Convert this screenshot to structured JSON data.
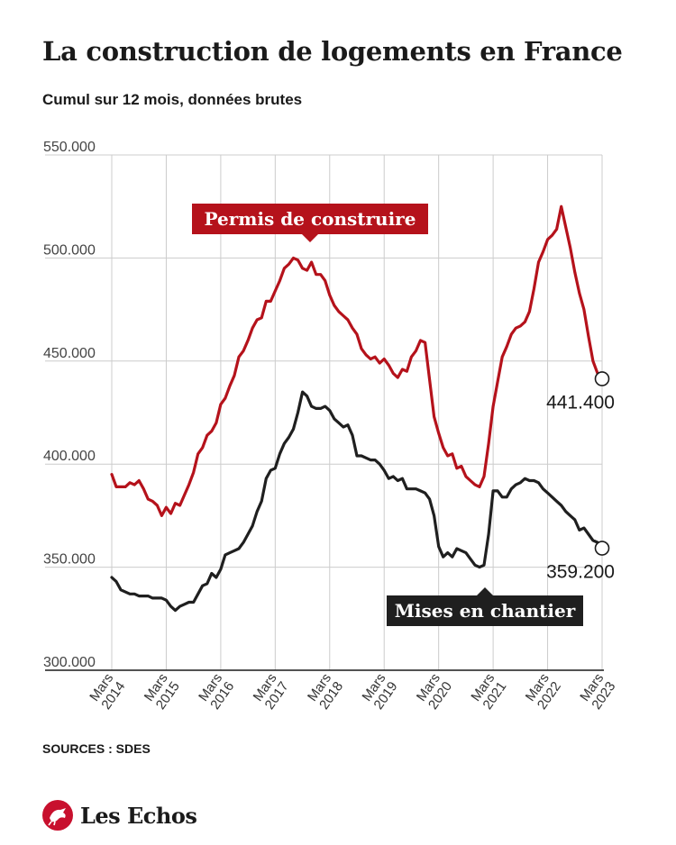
{
  "header": {
    "title": "La construction de logements en France",
    "subtitle": "Cumul sur 12 mois, données brutes"
  },
  "footer": {
    "source": "SOURCES : SDES",
    "logo_text": "Les Echos"
  },
  "colors": {
    "permis": "#b5121b",
    "mises": "#1f1f1f",
    "grid": "#cccccc",
    "logo": "#c8102e"
  },
  "chart_data": {
    "type": "line",
    "title": "La construction de logements en France",
    "subtitle": "Cumul sur 12 mois, données brutes",
    "ylim": [
      300000,
      550000
    ],
    "y_ticks": [
      300000,
      350000,
      400000,
      450000,
      500000,
      550000
    ],
    "y_tick_labels": [
      "300.000",
      "350.000",
      "400.000",
      "450.000",
      "500.000",
      "550.000"
    ],
    "x_ticks": [
      {
        "month": "2014-03",
        "line1": "Mars",
        "line2": "2014"
      },
      {
        "month": "2015-03",
        "line1": "Mars",
        "line2": "2015"
      },
      {
        "month": "2016-03",
        "line1": "Mars",
        "line2": "2016"
      },
      {
        "month": "2017-03",
        "line1": "Mars",
        "line2": "2017"
      },
      {
        "month": "2018-03",
        "line1": "Mars",
        "line2": "2018"
      },
      {
        "month": "2019-03",
        "line1": "Mars",
        "line2": "2019"
      },
      {
        "month": "2020-03",
        "line1": "Mars",
        "line2": "2020"
      },
      {
        "month": "2021-03",
        "line1": "Mars",
        "line2": "2021"
      },
      {
        "month": "2022-03",
        "line1": "Mars",
        "line2": "2022"
      },
      {
        "month": "2023-03",
        "line1": "Mars",
        "line2": "2023"
      }
    ],
    "grid": true,
    "series": [
      {
        "name": "Permis de construire",
        "end_label": "441.400",
        "points": [
          [
            "2014-03",
            395000
          ],
          [
            "2014-04",
            389000
          ],
          [
            "2014-05",
            389000
          ],
          [
            "2014-06",
            389000
          ],
          [
            "2014-07",
            391000
          ],
          [
            "2014-08",
            390000
          ],
          [
            "2014-09",
            392000
          ],
          [
            "2014-10",
            388000
          ],
          [
            "2014-11",
            383000
          ],
          [
            "2014-12",
            382000
          ],
          [
            "2015-01",
            380000
          ],
          [
            "2015-02",
            375000
          ],
          [
            "2015-03",
            379000
          ],
          [
            "2015-04",
            376000
          ],
          [
            "2015-05",
            381000
          ],
          [
            "2015-06",
            380000
          ],
          [
            "2015-07",
            385000
          ],
          [
            "2015-08",
            390000
          ],
          [
            "2015-09",
            396000
          ],
          [
            "2015-10",
            405000
          ],
          [
            "2015-11",
            408000
          ],
          [
            "2015-12",
            414000
          ],
          [
            "2016-01",
            416000
          ],
          [
            "2016-02",
            420000
          ],
          [
            "2016-03",
            429000
          ],
          [
            "2016-04",
            432000
          ],
          [
            "2016-05",
            438000
          ],
          [
            "2016-06",
            443000
          ],
          [
            "2016-07",
            452000
          ],
          [
            "2016-08",
            455000
          ],
          [
            "2016-09",
            460000
          ],
          [
            "2016-10",
            466000
          ],
          [
            "2016-11",
            470000
          ],
          [
            "2016-12",
            471000
          ],
          [
            "2017-01",
            479000
          ],
          [
            "2017-02",
            479000
          ],
          [
            "2017-03",
            484000
          ],
          [
            "2017-04",
            489000
          ],
          [
            "2017-05",
            495000
          ],
          [
            "2017-06",
            497000
          ],
          [
            "2017-07",
            500000
          ],
          [
            "2017-08",
            499000
          ],
          [
            "2017-09",
            495000
          ],
          [
            "2017-10",
            494000
          ],
          [
            "2017-11",
            498000
          ],
          [
            "2017-12",
            492000
          ],
          [
            "2018-01",
            492000
          ],
          [
            "2018-02",
            489000
          ],
          [
            "2018-03",
            482000
          ],
          [
            "2018-04",
            477000
          ],
          [
            "2018-05",
            474000
          ],
          [
            "2018-06",
            472000
          ],
          [
            "2018-07",
            470000
          ],
          [
            "2018-08",
            466000
          ],
          [
            "2018-09",
            463000
          ],
          [
            "2018-10",
            456000
          ],
          [
            "2018-11",
            453000
          ],
          [
            "2018-12",
            451000
          ],
          [
            "2019-01",
            452000
          ],
          [
            "2019-02",
            449000
          ],
          [
            "2019-03",
            451000
          ],
          [
            "2019-04",
            448000
          ],
          [
            "2019-05",
            444000
          ],
          [
            "2019-06",
            442000
          ],
          [
            "2019-07",
            446000
          ],
          [
            "2019-08",
            445000
          ],
          [
            "2019-09",
            452000
          ],
          [
            "2019-10",
            455000
          ],
          [
            "2019-11",
            460000
          ],
          [
            "2019-12",
            459000
          ],
          [
            "2020-01",
            441000
          ],
          [
            "2020-02",
            423000
          ],
          [
            "2020-03",
            415000
          ],
          [
            "2020-04",
            408000
          ],
          [
            "2020-05",
            404000
          ],
          [
            "2020-06",
            405000
          ],
          [
            "2020-07",
            398000
          ],
          [
            "2020-08",
            399000
          ],
          [
            "2020-09",
            394000
          ],
          [
            "2020-10",
            392000
          ],
          [
            "2020-11",
            390000
          ],
          [
            "2020-12",
            389000
          ],
          [
            "2021-01",
            394000
          ],
          [
            "2021-02",
            410000
          ],
          [
            "2021-03",
            428000
          ],
          [
            "2021-04",
            440000
          ],
          [
            "2021-05",
            452000
          ],
          [
            "2021-06",
            457000
          ],
          [
            "2021-07",
            463000
          ],
          [
            "2021-08",
            466000
          ],
          [
            "2021-09",
            467000
          ],
          [
            "2021-10",
            469000
          ],
          [
            "2021-11",
            474000
          ],
          [
            "2021-12",
            485000
          ],
          [
            "2022-01",
            498000
          ],
          [
            "2022-02",
            503000
          ],
          [
            "2022-03",
            509000
          ],
          [
            "2022-04",
            511000
          ],
          [
            "2022-05",
            514000
          ],
          [
            "2022-06",
            525000
          ],
          [
            "2022-07",
            515000
          ],
          [
            "2022-08",
            505000
          ],
          [
            "2022-09",
            493000
          ],
          [
            "2022-10",
            483000
          ],
          [
            "2022-11",
            475000
          ],
          [
            "2022-12",
            462000
          ],
          [
            "2023-01",
            450000
          ],
          [
            "2023-02",
            444000
          ],
          [
            "2023-03",
            441400
          ]
        ]
      },
      {
        "name": "Mises en chantier",
        "end_label": "359.200",
        "points": [
          [
            "2014-03",
            345000
          ],
          [
            "2014-04",
            343000
          ],
          [
            "2014-05",
            339000
          ],
          [
            "2014-06",
            338000
          ],
          [
            "2014-07",
            337000
          ],
          [
            "2014-08",
            337000
          ],
          [
            "2014-09",
            336000
          ],
          [
            "2014-10",
            336000
          ],
          [
            "2014-11",
            336000
          ],
          [
            "2014-12",
            335000
          ],
          [
            "2015-01",
            335000
          ],
          [
            "2015-02",
            335000
          ],
          [
            "2015-03",
            334000
          ],
          [
            "2015-04",
            331000
          ],
          [
            "2015-05",
            329000
          ],
          [
            "2015-06",
            331000
          ],
          [
            "2015-07",
            332000
          ],
          [
            "2015-08",
            333000
          ],
          [
            "2015-09",
            333000
          ],
          [
            "2015-10",
            337000
          ],
          [
            "2015-11",
            341000
          ],
          [
            "2015-12",
            342000
          ],
          [
            "2016-01",
            347000
          ],
          [
            "2016-02",
            345000
          ],
          [
            "2016-03",
            349000
          ],
          [
            "2016-04",
            356000
          ],
          [
            "2016-05",
            357000
          ],
          [
            "2016-06",
            358000
          ],
          [
            "2016-07",
            359000
          ],
          [
            "2016-08",
            362000
          ],
          [
            "2016-09",
            366000
          ],
          [
            "2016-10",
            370000
          ],
          [
            "2016-11",
            377000
          ],
          [
            "2016-12",
            382000
          ],
          [
            "2017-01",
            393000
          ],
          [
            "2017-02",
            397000
          ],
          [
            "2017-03",
            398000
          ],
          [
            "2017-04",
            405000
          ],
          [
            "2017-05",
            410000
          ],
          [
            "2017-06",
            413000
          ],
          [
            "2017-07",
            417000
          ],
          [
            "2017-08",
            425000
          ],
          [
            "2017-09",
            435000
          ],
          [
            "2017-10",
            433000
          ],
          [
            "2017-11",
            428000
          ],
          [
            "2017-12",
            427000
          ],
          [
            "2018-01",
            427000
          ],
          [
            "2018-02",
            428000
          ],
          [
            "2018-03",
            426000
          ],
          [
            "2018-04",
            422000
          ],
          [
            "2018-05",
            420000
          ],
          [
            "2018-06",
            418000
          ],
          [
            "2018-07",
            419000
          ],
          [
            "2018-08",
            414000
          ],
          [
            "2018-09",
            404000
          ],
          [
            "2018-10",
            404000
          ],
          [
            "2018-11",
            403000
          ],
          [
            "2018-12",
            402000
          ],
          [
            "2019-01",
            402000
          ],
          [
            "2019-02",
            400000
          ],
          [
            "2019-03",
            397000
          ],
          [
            "2019-04",
            393000
          ],
          [
            "2019-05",
            394000
          ],
          [
            "2019-06",
            392000
          ],
          [
            "2019-07",
            393000
          ],
          [
            "2019-08",
            388000
          ],
          [
            "2019-09",
            388000
          ],
          [
            "2019-10",
            388000
          ],
          [
            "2019-11",
            387000
          ],
          [
            "2019-12",
            386000
          ],
          [
            "2020-01",
            383000
          ],
          [
            "2020-02",
            375000
          ],
          [
            "2020-03",
            360000
          ],
          [
            "2020-04",
            355000
          ],
          [
            "2020-05",
            357000
          ],
          [
            "2020-06",
            355000
          ],
          [
            "2020-07",
            359000
          ],
          [
            "2020-08",
            358000
          ],
          [
            "2020-09",
            357000
          ],
          [
            "2020-10",
            354000
          ],
          [
            "2020-11",
            351000
          ],
          [
            "2020-12",
            350000
          ],
          [
            "2021-01",
            351000
          ],
          [
            "2021-02",
            366000
          ],
          [
            "2021-03",
            387000
          ],
          [
            "2021-04",
            387000
          ],
          [
            "2021-05",
            384000
          ],
          [
            "2021-06",
            384000
          ],
          [
            "2021-07",
            388000
          ],
          [
            "2021-08",
            390000
          ],
          [
            "2021-09",
            391000
          ],
          [
            "2021-10",
            393000
          ],
          [
            "2021-11",
            392000
          ],
          [
            "2021-12",
            392000
          ],
          [
            "2022-01",
            391000
          ],
          [
            "2022-02",
            388000
          ],
          [
            "2022-03",
            386000
          ],
          [
            "2022-04",
            384000
          ],
          [
            "2022-05",
            382000
          ],
          [
            "2022-06",
            380000
          ],
          [
            "2022-07",
            377000
          ],
          [
            "2022-08",
            375000
          ],
          [
            "2022-09",
            373000
          ],
          [
            "2022-10",
            368000
          ],
          [
            "2022-11",
            369000
          ],
          [
            "2022-12",
            366000
          ],
          [
            "2023-01",
            363000
          ],
          [
            "2023-02",
            362000
          ],
          [
            "2023-03",
            359200
          ]
        ]
      }
    ]
  }
}
